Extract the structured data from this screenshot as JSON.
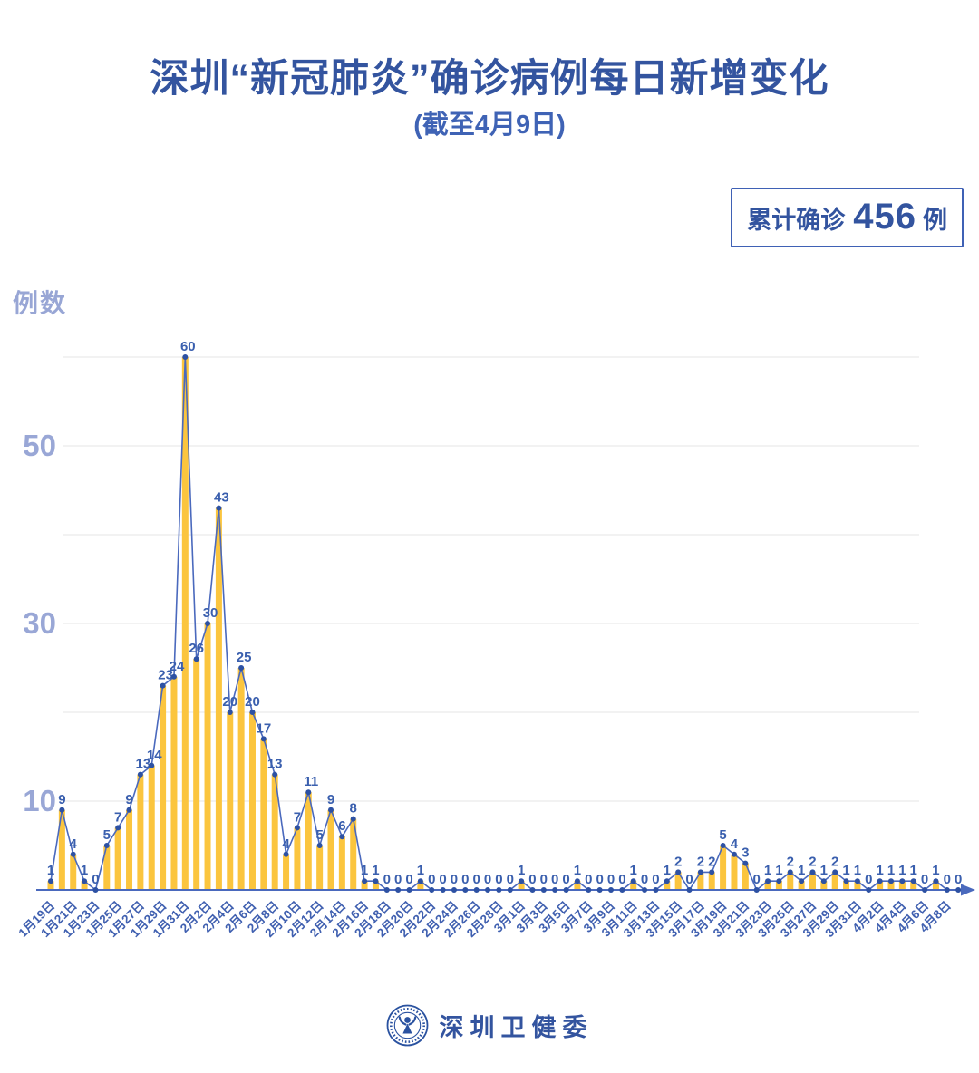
{
  "header": {
    "title": "深圳“新冠肺炎”确诊病例每日新增变化",
    "subtitle": "(截至4月9日)"
  },
  "badge": {
    "prefix": "累计确诊",
    "value": "456",
    "suffix": "例"
  },
  "chart_data": {
    "type": "bar",
    "overlay": "line",
    "title": "深圳“新冠肺炎”确诊病例每日新增变化 (截至4月9日)",
    "xlabel": "",
    "ylabel": "例数",
    "ylim": [
      0,
      62
    ],
    "yticks_labeled": [
      10,
      30,
      50
    ],
    "gridlines": [
      10,
      20,
      30,
      40,
      50,
      60
    ],
    "x_label_interval": 2,
    "grid": true,
    "legend_position": "none",
    "point_labels": true,
    "categories": [
      "1月19日",
      "1月20日",
      "1月21日",
      "1月22日",
      "1月23日",
      "1月24日",
      "1月25日",
      "1月26日",
      "1月27日",
      "1月28日",
      "1月29日",
      "1月30日",
      "1月31日",
      "2月1日",
      "2月2日",
      "2月3日",
      "2月4日",
      "2月5日",
      "2月6日",
      "2月7日",
      "2月8日",
      "2月9日",
      "2月10日",
      "2月11日",
      "2月12日",
      "2月13日",
      "2月14日",
      "2月15日",
      "2月16日",
      "2月17日",
      "2月18日",
      "2月19日",
      "2月20日",
      "2月21日",
      "2月22日",
      "2月23日",
      "2月24日",
      "2月25日",
      "2月26日",
      "2月27日",
      "2月28日",
      "2月29日",
      "3月1日",
      "3月2日",
      "3月3日",
      "3月4日",
      "3月5日",
      "3月6日",
      "3月7日",
      "3月8日",
      "3月9日",
      "3月10日",
      "3月11日",
      "3月12日",
      "3月13日",
      "3月14日",
      "3月15日",
      "3月16日",
      "3月17日",
      "3月18日",
      "3月19日",
      "3月20日",
      "3月21日",
      "3月22日",
      "3月23日",
      "3月24日",
      "3月25日",
      "3月26日",
      "3月27日",
      "3月28日",
      "3月29日",
      "3月30日",
      "3月31日",
      "4月1日",
      "4月2日",
      "4月3日",
      "4月4日",
      "4月5日",
      "4月6日",
      "4月7日",
      "4月8日",
      "4月9日"
    ],
    "values": [
      1,
      9,
      4,
      1,
      0,
      5,
      7,
      9,
      13,
      14,
      23,
      24,
      60,
      26,
      30,
      43,
      20,
      25,
      20,
      17,
      13,
      4,
      7,
      11,
      5,
      9,
      6,
      8,
      1,
      1,
      0,
      0,
      0,
      1,
      0,
      0,
      0,
      0,
      0,
      0,
      0,
      0,
      1,
      0,
      0,
      0,
      0,
      1,
      0,
      0,
      0,
      0,
      1,
      0,
      0,
      1,
      2,
      0,
      2,
      2,
      5,
      4,
      3,
      0,
      1,
      1,
      2,
      1,
      2,
      1,
      2,
      1,
      1,
      0,
      1,
      1,
      1,
      1,
      0,
      1,
      0,
      0
    ],
    "total": 456
  },
  "colors": {
    "title": "#33549f",
    "bar": "#fbc53e",
    "line": "#4a69bd",
    "point": "#2d51a3",
    "value_label": "#3a5fae",
    "x_tick": "#4060b0",
    "y_tick": "#99a7d6",
    "grid": "#ededed",
    "axis": "#4a69bd",
    "badge_border": "#3f61b5"
  },
  "footer": {
    "logo": "shenzhen-health-commission-emblem",
    "label": "深圳卫健委"
  }
}
